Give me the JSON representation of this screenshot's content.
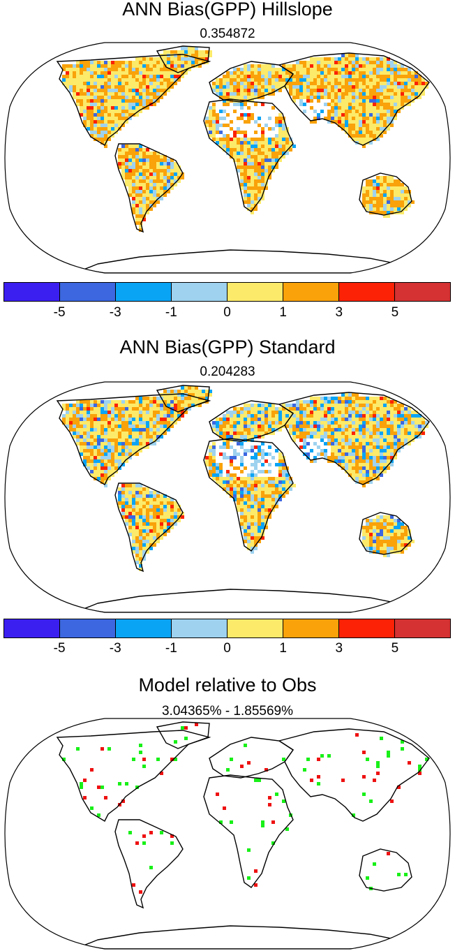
{
  "panels": [
    {
      "title": "ANN Bias(GPP) Hillslope",
      "subtitle": "0.354872"
    },
    {
      "title": "ANN Bias(GPP) Standard",
      "subtitle": "0.204283"
    },
    {
      "title": "Model relative to Obs",
      "subtitle": "3.04365% - 1.85569%"
    }
  ],
  "colorbar": {
    "colors": [
      "#3b1ff0",
      "#3c67e0",
      "#0aa4f5",
      "#9ed2ef",
      "#fcea6a",
      "#f9a20a",
      "#fb2206",
      "#d43233"
    ],
    "ticks": [
      "-5",
      "-3",
      "-1",
      "0",
      "1",
      "3",
      "5"
    ]
  },
  "relative_colors": {
    "better": "#18f018",
    "worse": "#ee1111"
  }
}
